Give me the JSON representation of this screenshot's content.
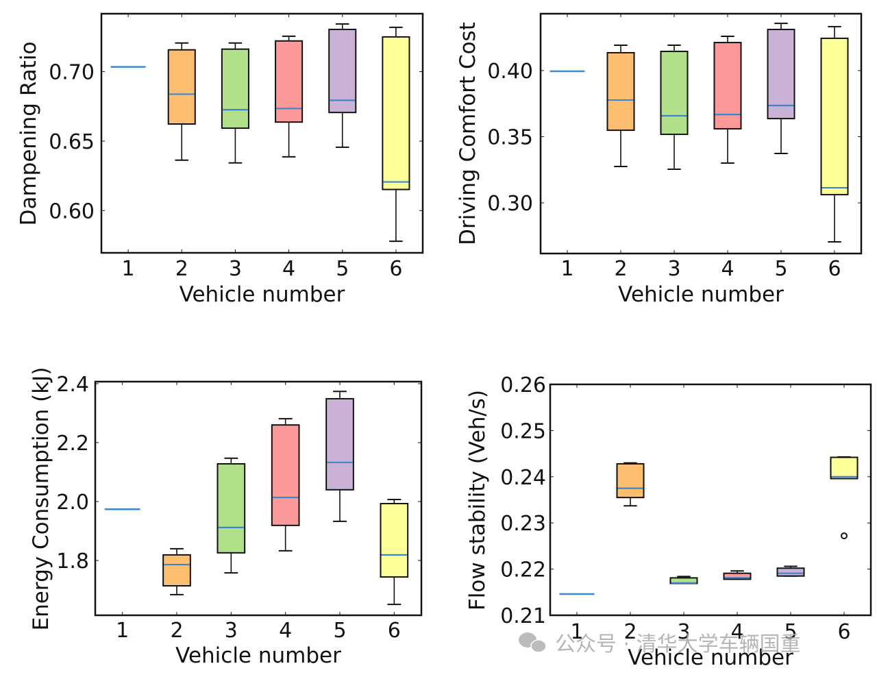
{
  "chart_data": [
    {
      "type": "boxplot",
      "title": "",
      "xlabel": "Vehicle number",
      "ylabel": "Dampening Ratio",
      "categories": [
        "1",
        "2",
        "3",
        "4",
        "5",
        "6"
      ],
      "ylim": [
        0.5696,
        0.7417
      ],
      "yticks": [
        0.6,
        0.65,
        0.7
      ],
      "ytick_labels": [
        "0.60",
        "0.65",
        "0.70"
      ],
      "boxes": [
        {
          "category": "1",
          "whislo": 0.7034,
          "q1": 0.7034,
          "med": 0.7034,
          "q3": 0.7034,
          "whishi": 0.7034,
          "fliers": []
        },
        {
          "category": "2",
          "whislo": 0.6363,
          "q1": 0.6623,
          "med": 0.6838,
          "q3": 0.7157,
          "whishi": 0.7206,
          "fliers": []
        },
        {
          "category": "3",
          "whislo": 0.6343,
          "q1": 0.6593,
          "med": 0.6726,
          "q3": 0.7162,
          "whishi": 0.7206,
          "fliers": []
        },
        {
          "category": "4",
          "whislo": 0.6387,
          "q1": 0.6637,
          "med": 0.6735,
          "q3": 0.7221,
          "whishi": 0.7255,
          "fliers": []
        },
        {
          "category": "5",
          "whislo": 0.6456,
          "q1": 0.6706,
          "med": 0.6794,
          "q3": 0.7304,
          "whishi": 0.7343,
          "fliers": []
        },
        {
          "category": "6",
          "whislo": 0.5779,
          "q1": 0.6152,
          "med": 0.6206,
          "q3": 0.725,
          "whishi": 0.7319,
          "fliers": []
        }
      ]
    },
    {
      "type": "boxplot",
      "title": "",
      "xlabel": "Vehicle number",
      "ylabel": "Driving Comfort Cost",
      "categories": [
        "1",
        "2",
        "3",
        "4",
        "5",
        "6"
      ],
      "ylim": [
        0.2617,
        0.443
      ],
      "yticks": [
        0.3,
        0.35,
        0.4
      ],
      "ytick_labels": [
        "0.30",
        "0.35",
        "0.40"
      ],
      "boxes": [
        {
          "category": "1",
          "whislo": 0.3995,
          "q1": 0.3995,
          "med": 0.3995,
          "q3": 0.3995,
          "whishi": 0.3995,
          "fliers": []
        },
        {
          "category": "2",
          "whislo": 0.3275,
          "q1": 0.3549,
          "med": 0.3777,
          "q3": 0.4135,
          "whishi": 0.4192,
          "fliers": []
        },
        {
          "category": "3",
          "whislo": 0.3254,
          "q1": 0.3518,
          "med": 0.3658,
          "q3": 0.4145,
          "whishi": 0.4192,
          "fliers": []
        },
        {
          "category": "4",
          "whislo": 0.3301,
          "q1": 0.356,
          "med": 0.3668,
          "q3": 0.4212,
          "whishi": 0.4259,
          "fliers": []
        },
        {
          "category": "5",
          "whislo": 0.3373,
          "q1": 0.3637,
          "med": 0.3736,
          "q3": 0.4311,
          "whishi": 0.4357,
          "fliers": []
        },
        {
          "category": "6",
          "whislo": 0.2705,
          "q1": 0.3062,
          "med": 0.3114,
          "q3": 0.4244,
          "whishi": 0.4332,
          "fliers": []
        }
      ]
    },
    {
      "type": "boxplot",
      "title": "",
      "xlabel": "Vehicle number",
      "ylabel": "Energy Consumption (kJ)",
      "categories": [
        "1",
        "2",
        "3",
        "4",
        "5",
        "6"
      ],
      "ylim": [
        1.614,
        2.407
      ],
      "yticks": [
        1.8,
        2.0,
        2.2,
        2.4
      ],
      "ytick_labels": [
        "1.8",
        "2.0",
        "2.2",
        "2.4"
      ],
      "boxes": [
        {
          "category": "1",
          "whislo": 1.974,
          "q1": 1.974,
          "med": 1.974,
          "q3": 1.974,
          "whishi": 1.974,
          "fliers": []
        },
        {
          "category": "2",
          "whislo": 1.684,
          "q1": 1.714,
          "med": 1.786,
          "q3": 1.819,
          "whishi": 1.84,
          "fliers": []
        },
        {
          "category": "3",
          "whislo": 1.758,
          "q1": 1.826,
          "med": 1.912,
          "q3": 2.128,
          "whishi": 2.147,
          "fliers": []
        },
        {
          "category": "4",
          "whislo": 1.833,
          "q1": 1.919,
          "med": 2.014,
          "q3": 2.26,
          "whishi": 2.281,
          "fliers": []
        },
        {
          "category": "5",
          "whislo": 1.933,
          "q1": 2.04,
          "med": 2.133,
          "q3": 2.349,
          "whishi": 2.374,
          "fliers": []
        },
        {
          "category": "6",
          "whislo": 1.651,
          "q1": 1.744,
          "med": 1.819,
          "q3": 1.993,
          "whishi": 2.007,
          "fliers": []
        }
      ]
    },
    {
      "type": "boxplot",
      "title": "",
      "xlabel": "Vehicle number",
      "ylabel": "Flow stability (Veh/s)",
      "categories": [
        "1",
        "2",
        "3",
        "4",
        "5",
        "6"
      ],
      "ylim": [
        0.21,
        0.26
      ],
      "yticks": [
        0.21,
        0.22,
        0.23,
        0.24,
        0.25,
        0.26
      ],
      "ytick_labels": [
        "0.21",
        "0.22",
        "0.23",
        "0.24",
        "0.25",
        "0.26"
      ],
      "boxes": [
        {
          "category": "1",
          "whislo": 0.2146,
          "q1": 0.2146,
          "med": 0.2146,
          "q3": 0.2146,
          "whishi": 0.2146,
          "fliers": []
        },
        {
          "category": "2",
          "whislo": 0.2337,
          "q1": 0.2355,
          "med": 0.2375,
          "q3": 0.2428,
          "whishi": 0.243,
          "fliers": []
        },
        {
          "category": "3",
          "whislo": 0.2169,
          "q1": 0.2169,
          "med": 0.217,
          "q3": 0.2181,
          "whishi": 0.2184,
          "fliers": []
        },
        {
          "category": "4",
          "whislo": 0.2178,
          "q1": 0.2178,
          "med": 0.2181,
          "q3": 0.2191,
          "whishi": 0.2196,
          "fliers": []
        },
        {
          "category": "5",
          "whislo": 0.2185,
          "q1": 0.2185,
          "med": 0.2191,
          "q3": 0.2202,
          "whishi": 0.2206,
          "fliers": []
        },
        {
          "category": "6",
          "whislo": 0.2396,
          "q1": 0.2396,
          "med": 0.24,
          "q3": 0.2442,
          "whishi": 0.2443,
          "fliers": [
            0.2272
          ]
        }
      ]
    }
  ],
  "colors": {
    "box_fills": [
      "#FDBF6F",
      "#B2DF8A",
      "#FB9A99",
      "#CAB2D6",
      "#FFFF99"
    ],
    "median": "#3A87D0",
    "frame": "#111111"
  },
  "watermark": {
    "text": "公众号 · 清华大学车辆国重",
    "icon": "wechat-icon"
  }
}
